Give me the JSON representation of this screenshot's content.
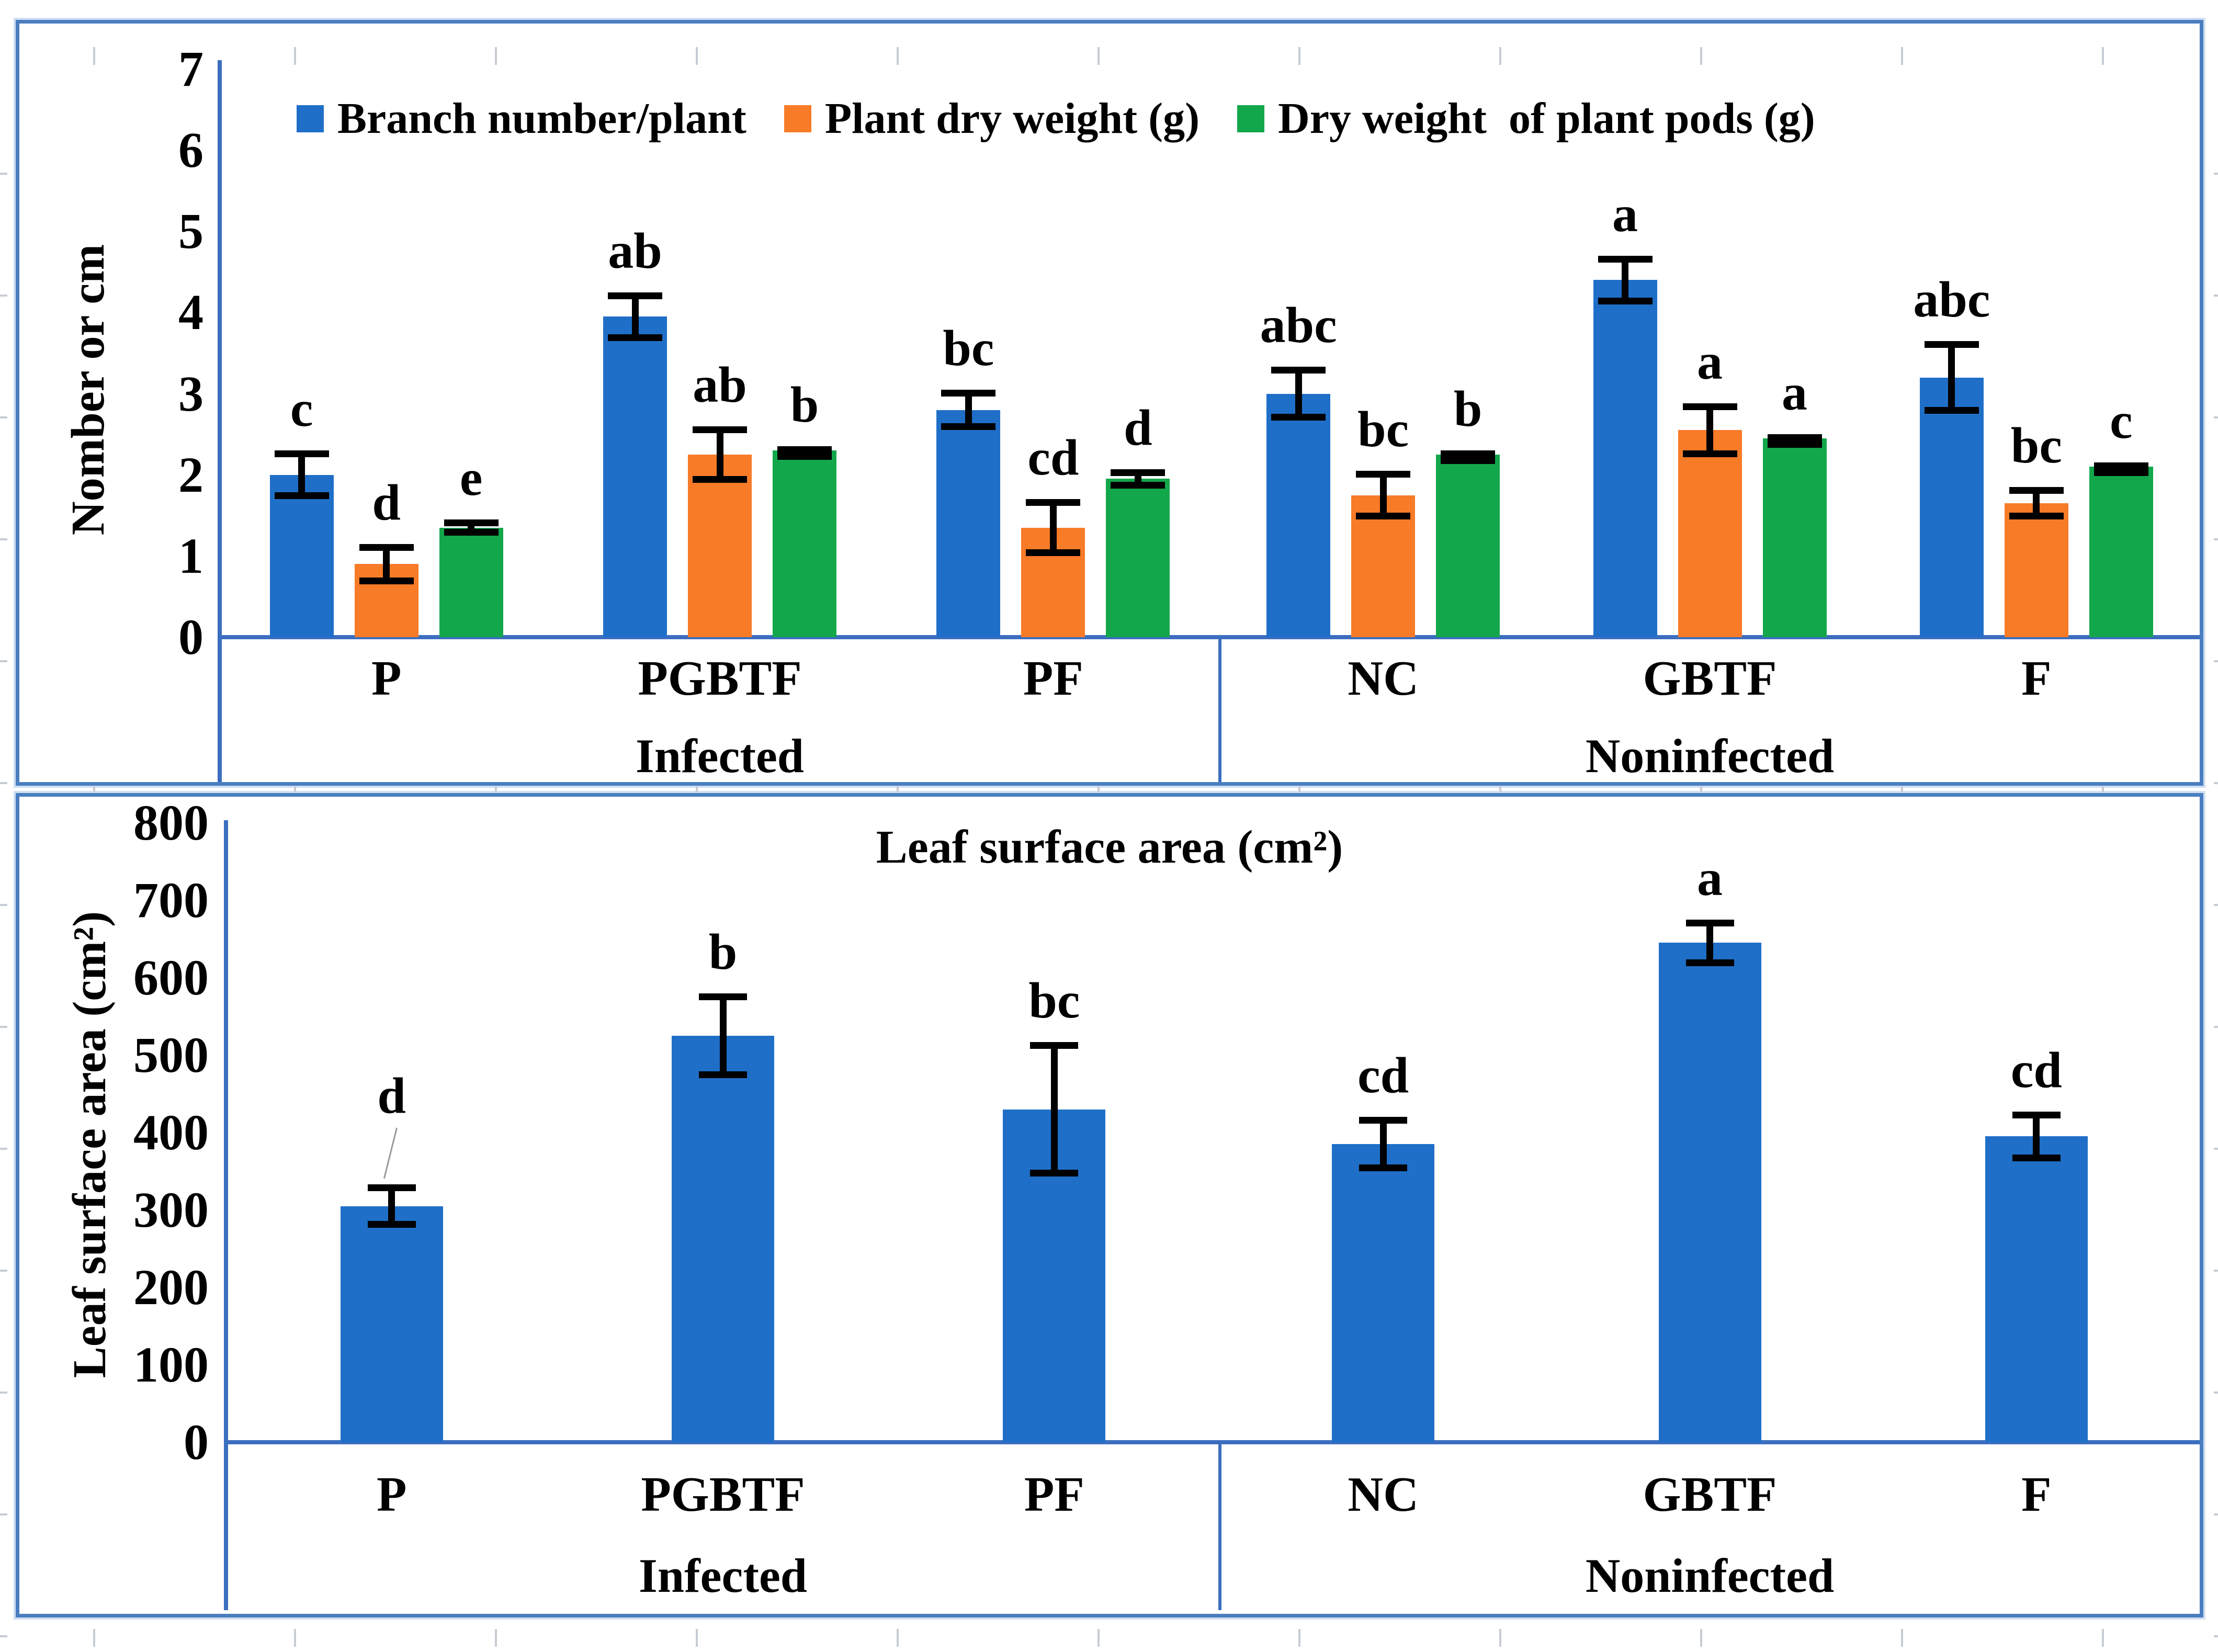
{
  "colors": {
    "bar_blue": "#1F6FC8",
    "bar_orange": "#F87B28",
    "bar_green": "#13A74B",
    "frame_blue": "#4A7EC0",
    "axis_blue": "#3C6EBF",
    "stub_gray": "#C7CCD4",
    "error_black": "#000000"
  },
  "chart_data": [
    {
      "type": "bar",
      "title": "",
      "y_axis": {
        "label": "Nomber or cm",
        "min": 0,
        "max": 7,
        "step": 1,
        "tick_labels": [
          "0",
          "1",
          "2",
          "3",
          "4",
          "5",
          "6",
          "7"
        ]
      },
      "legend_position": "top-inside",
      "grid": false,
      "x_sections": [
        {
          "label": "Infected",
          "categories": [
            "P",
            "PGBTF",
            "PF"
          ]
        },
        {
          "label": "Noninfected",
          "categories": [
            "NC",
            "GBTF",
            "F"
          ]
        }
      ],
      "categories": [
        "P",
        "PGBTF",
        "PF",
        "NC",
        "GBTF",
        "F"
      ],
      "series": [
        {
          "name": "Branch number/plant",
          "color": "#1F6FC8",
          "values": [
            2.0,
            3.95,
            2.8,
            3.0,
            4.4,
            3.2
          ],
          "errors": [
            0.3,
            0.3,
            0.25,
            0.33,
            0.3,
            0.45
          ],
          "sig_letters": [
            "c",
            "ab",
            "bc",
            "abc",
            "a",
            "abc"
          ]
        },
        {
          "name": "Plant dry weight (g)",
          "color": "#F87B28",
          "values": [
            0.9,
            2.25,
            1.35,
            1.75,
            2.55,
            1.65
          ],
          "errors": [
            0.25,
            0.35,
            0.35,
            0.3,
            0.33,
            0.2
          ],
          "sig_letters": [
            "d",
            "ab",
            "cd",
            "bc",
            "a",
            "bc"
          ]
        },
        {
          "name": "Dry weight  of plant pods (g)",
          "color": "#13A74B",
          "values": [
            1.35,
            2.3,
            1.95,
            2.25,
            2.45,
            2.1
          ],
          "errors": [
            0.1,
            0.05,
            0.12,
            0.05,
            0.05,
            0.05
          ],
          "sig_letters": [
            "e",
            "b",
            "d",
            "b",
            "a",
            "c"
          ]
        }
      ]
    },
    {
      "type": "bar",
      "title": "Leaf surface area (cm²)",
      "y_axis": {
        "label": "Leaf surface area (cm²)",
        "min": 0,
        "max": 800,
        "step": 100,
        "tick_labels": [
          "0",
          "100",
          "200",
          "300",
          "400",
          "500",
          "600",
          "700",
          "800"
        ]
      },
      "legend_position": "none",
      "grid": false,
      "x_sections": [
        {
          "label": "Infected",
          "categories": [
            "P",
            "PGBTF",
            "PF"
          ]
        },
        {
          "label": "Noninfected",
          "categories": [
            "NC",
            "GBTF",
            "F"
          ]
        }
      ],
      "categories": [
        "P",
        "PGBTF",
        "PF",
        "NC",
        "GBTF",
        "F"
      ],
      "series": [
        {
          "name": "Leaf surface area",
          "color": "#1F6FC8",
          "values": [
            305,
            525,
            430,
            385,
            645,
            395
          ],
          "errors": [
            28,
            55,
            87,
            35,
            30,
            32
          ],
          "sig_letters": [
            "d",
            "b",
            "bc",
            "cd",
            "a",
            "cd"
          ],
          "letter_leader_index": 0
        }
      ]
    }
  ]
}
